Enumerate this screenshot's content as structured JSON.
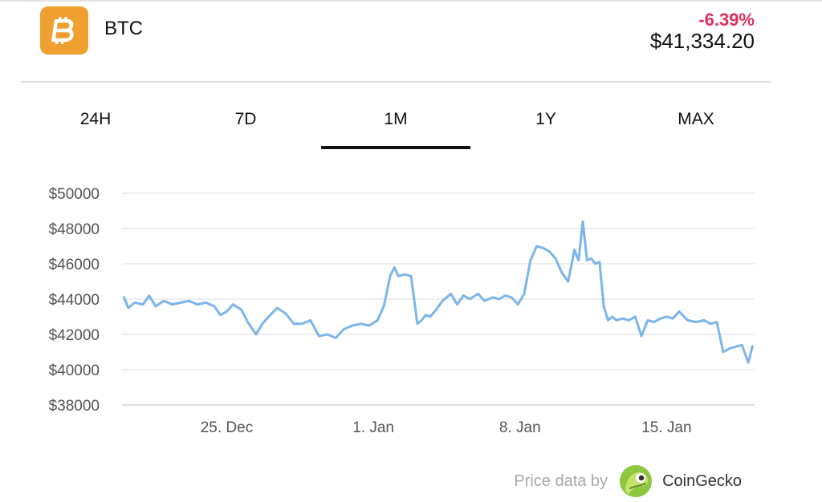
{
  "coin": {
    "symbol": "BTC",
    "logo_icon": "bitcoin-icon",
    "logo_color": "#f0a030",
    "change": "-6.39%",
    "change_color": "#e0305e",
    "price": "$41,334.20"
  },
  "tabs": [
    {
      "label": "24H",
      "active": false
    },
    {
      "label": "7D",
      "active": false
    },
    {
      "label": "1M",
      "active": true
    },
    {
      "label": "1Y",
      "active": false
    },
    {
      "label": "MAX",
      "active": false
    }
  ],
  "chart_data": {
    "type": "line",
    "title": "",
    "xlabel": "",
    "ylabel": "",
    "ylim": [
      38000,
      50000
    ],
    "y_ticks": [
      50000,
      48000,
      46000,
      44000,
      42000,
      40000,
      38000
    ],
    "y_tick_labels": [
      "$50000",
      "$48000",
      "$46000",
      "$44000",
      "$42000",
      "$40000",
      "$38000"
    ],
    "x_tick_labels": [
      "25. Dec",
      "1. Jan",
      "8. Jan",
      "15. Jan"
    ],
    "x_ticks_day": [
      25,
      32,
      39,
      46
    ],
    "x_range_day": [
      20,
      50.2
    ],
    "grid": true,
    "line_color": "#7cb5ec",
    "series": [
      {
        "day": [
          20.1,
          20.3,
          20.6,
          21.0,
          21.3,
          21.6,
          22.0,
          22.4,
          22.8,
          23.2,
          23.6,
          24.0,
          24.4,
          24.7,
          25.0,
          25.3,
          25.7,
          26.0,
          26.4,
          26.7,
          27.0,
          27.4,
          27.8,
          28.2,
          28.6,
          29.0,
          29.4,
          29.8,
          30.2,
          30.6,
          31.0,
          31.4,
          31.8,
          32.2,
          32.5,
          32.8,
          33.0,
          33.2,
          33.5,
          33.8,
          34.1,
          34.3,
          34.5,
          34.7,
          35.0,
          35.3,
          35.7,
          36.0,
          36.3,
          36.6,
          37.0,
          37.3,
          37.7,
          38.0,
          38.3,
          38.6,
          38.9,
          39.2,
          39.5,
          39.8,
          40.1,
          40.4,
          40.7,
          41.0,
          41.3,
          41.6,
          41.8,
          42.0,
          42.2,
          42.4,
          42.6,
          42.8,
          43.0,
          43.2,
          43.4,
          43.6,
          43.9,
          44.2,
          44.5,
          44.8,
          45.1,
          45.4,
          45.7,
          46.0,
          46.3,
          46.6,
          47.0,
          47.4,
          47.8,
          48.1,
          48.4,
          48.7,
          49.0,
          49.3,
          49.6,
          49.9,
          50.1
        ],
        "values": [
          44100,
          43500,
          43800,
          43700,
          44200,
          43600,
          43900,
          43700,
          43800,
          43900,
          43700,
          43800,
          43600,
          43100,
          43300,
          43700,
          43400,
          42700,
          42000,
          42600,
          43000,
          43500,
          43200,
          42600,
          42600,
          42800,
          41900,
          42000,
          41800,
          42300,
          42500,
          42600,
          42500,
          42800,
          43600,
          45300,
          45800,
          45300,
          45400,
          45300,
          42600,
          42800,
          43100,
          43000,
          43400,
          43900,
          44300,
          43700,
          44200,
          44000,
          44300,
          43900,
          44100,
          44000,
          44200,
          44100,
          43700,
          44300,
          46200,
          47000,
          46900,
          46700,
          46300,
          45500,
          45000,
          46800,
          46200,
          48400,
          46200,
          46300,
          46000,
          46100,
          43600,
          42800,
          43000,
          42800,
          42900,
          42800,
          43000,
          41900,
          42800,
          42700,
          42900,
          43000,
          42900,
          43300,
          42800,
          42700,
          42800,
          42600,
          42700,
          41000,
          41200,
          41300,
          41400,
          40400,
          41334
        ]
      }
    ]
  },
  "credit": {
    "text": "Price data by",
    "brand": "CoinGecko",
    "brand_icon": "coingecko-icon"
  }
}
